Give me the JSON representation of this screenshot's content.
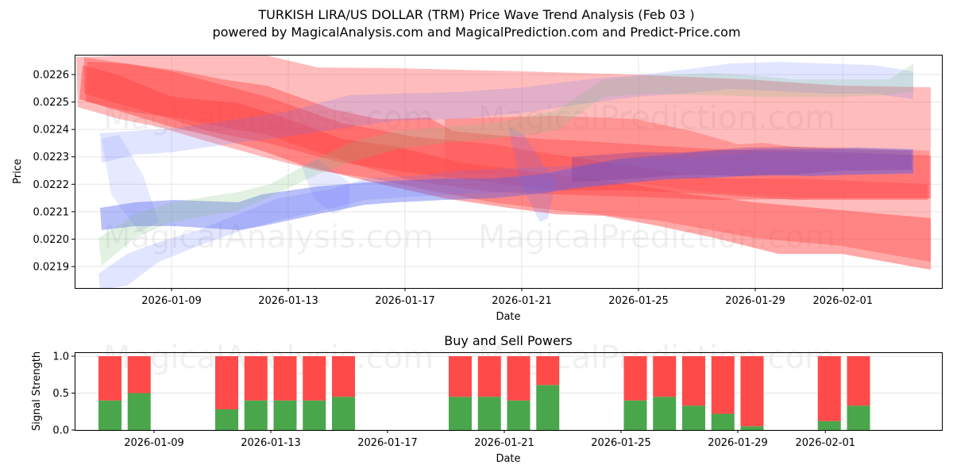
{
  "header": {
    "title": "TURKISH LIRA/US DOLLAR (TRM) Price Wave Trend Analysis (Feb 03 )",
    "subtitle": "powered by MagicalAnalysis.com and MagicalPrediction.com and Predict-Price.com"
  },
  "watermarks": [
    "MagicalAnalysis.com",
    "MagicalPrediction.com"
  ],
  "colors": {
    "buy": "#4aa64a",
    "sell": "#ff4a4a",
    "red_band": "#ff4040",
    "blue_band": "#6070ff",
    "green_band": "#80c080",
    "grid": "#e0e0e0"
  },
  "chart_data": [
    {
      "type": "area",
      "title": "TURKISH LIRA/US DOLLAR (TRM) Price Wave Trend Analysis (Feb 03 )",
      "xlabel": "Date",
      "ylabel": "Price",
      "x_ticks": [
        "2026-01-09",
        "2026-01-13",
        "2026-01-17",
        "2026-01-21",
        "2026-01-25",
        "2026-01-29",
        "2026-02-01"
      ],
      "y_ticks": [
        "0.0219",
        "0.0220",
        "0.0221",
        "0.0222",
        "0.0223",
        "0.0224",
        "0.0225",
        "0.0226"
      ],
      "ylim": [
        0.02182,
        0.02267
      ],
      "xlim": [
        "2026-01-05",
        "2026-02-04"
      ],
      "grid": true,
      "description": "Overlapping translucent wave-trend bands: red bands descending from ~0.0226 to ~0.0219-0.0225; blue and green bands ascending from ~0.0219-0.0223 to ~0.0222-0.0226",
      "series": [
        {
          "name": "red band 1",
          "color": "red",
          "x": [
            "2026-01-06",
            "2026-01-09",
            "2026-01-13",
            "2026-01-16",
            "2026-01-21",
            "2026-01-25",
            "2026-01-29",
            "2026-02-03"
          ],
          "upper": [
            0.02266,
            0.02262,
            0.02258,
            0.02256,
            0.02256,
            0.02255,
            0.02252,
            0.0225
          ],
          "lower": [
            0.0225,
            0.02246,
            0.02241,
            0.02239,
            0.02241,
            0.02238,
            0.02236,
            0.02232
          ]
        },
        {
          "name": "red band 2",
          "color": "red",
          "x": [
            "2026-01-06",
            "2026-01-09",
            "2026-01-13",
            "2026-01-16",
            "2026-01-21",
            "2026-01-25",
            "2026-01-28",
            "2026-01-30",
            "2026-02-03"
          ],
          "upper": [
            0.02266,
            0.02258,
            0.02252,
            0.02242,
            0.02238,
            0.02232,
            0.0223,
            0.02224,
            0.02222
          ],
          "lower": [
            0.02248,
            0.02238,
            0.02232,
            0.02222,
            0.02218,
            0.02215,
            0.02212,
            0.02205,
            0.02199
          ]
        },
        {
          "name": "red band 3",
          "color": "red",
          "x": [
            "2026-01-06",
            "2026-01-09",
            "2026-01-13",
            "2026-01-16",
            "2026-01-21",
            "2026-01-25",
            "2026-01-29",
            "2026-02-03"
          ],
          "upper": [
            0.0226,
            0.0225,
            0.02243,
            0.02236,
            0.02232,
            0.02225,
            0.02218,
            0.02207
          ],
          "lower": [
            0.02248,
            0.02238,
            0.02228,
            0.0222,
            0.02214,
            0.02204,
            0.02194,
            0.02188
          ]
        },
        {
          "name": "red band 4",
          "color": "red",
          "x": [
            "2026-01-16",
            "2026-01-21",
            "2026-01-25",
            "2026-01-28",
            "2026-01-30",
            "2026-02-03"
          ],
          "upper": [
            0.02245,
            0.02246,
            0.02247,
            0.02242,
            0.02232,
            0.02232
          ],
          "lower": [
            0.02228,
            0.02222,
            0.02218,
            0.02214,
            0.02215,
            0.02214
          ]
        },
        {
          "name": "blue band 1",
          "color": "blue",
          "x": [
            "2026-01-06",
            "2026-01-09",
            "2026-01-13",
            "2026-01-16",
            "2026-01-21",
            "2026-01-25",
            "2026-01-29",
            "2026-02-03"
          ],
          "upper": [
            0.02212,
            0.02214,
            0.02214,
            0.02219,
            0.02222,
            0.02227,
            0.02232,
            0.02231
          ],
          "lower": [
            0.02205,
            0.02207,
            0.02207,
            0.02213,
            0.02216,
            0.02221,
            0.02224,
            0.02223
          ]
        },
        {
          "name": "blue band 2",
          "color": "blue",
          "x": [
            "2026-01-06",
            "2026-01-09",
            "2026-01-13",
            "2026-01-16",
            "2026-01-20",
            "2026-01-25",
            "2026-01-29",
            "2026-02-03"
          ],
          "upper": [
            0.0224,
            0.02242,
            0.02242,
            0.02247,
            0.0225,
            0.02257,
            0.02262,
            0.02262
          ],
          "lower": [
            0.0223,
            0.0223,
            0.02232,
            0.02238,
            0.02242,
            0.02248,
            0.02252,
            0.02255
          ]
        },
        {
          "name": "blue band 3",
          "color": "blue",
          "x": [
            "2026-01-06",
            "2026-01-09",
            "2026-01-13",
            "2026-01-17",
            "2026-01-21",
            "2026-01-25",
            "2026-01-29",
            "2026-02-03"
          ],
          "upper": [
            0.02192,
            0.02203,
            0.02207,
            0.02215,
            0.02217,
            0.02226,
            0.02233,
            0.02233
          ],
          "lower": [
            0.02183,
            0.02195,
            0.022,
            0.02211,
            0.02213,
            0.02219,
            0.02224,
            0.02225
          ]
        },
        {
          "name": "green band",
          "color": "green",
          "x": [
            "2026-01-06",
            "2026-01-09",
            "2026-01-13",
            "2026-01-16",
            "2026-01-21",
            "2026-01-25",
            "2026-01-29",
            "2026-02-03"
          ],
          "upper": [
            0.022,
            0.02212,
            0.02221,
            0.0224,
            0.02249,
            0.02258,
            0.02258,
            0.02264
          ],
          "lower": [
            0.02194,
            0.02205,
            0.02213,
            0.02233,
            0.02243,
            0.02251,
            0.02252,
            0.02255
          ]
        }
      ]
    },
    {
      "type": "bar",
      "title": "Buy and Sell Powers",
      "xlabel": "Date",
      "ylabel": "Signal Strength",
      "ylim": [
        0,
        1.05
      ],
      "y_ticks": [
        "0.0",
        "0.5",
        "1.0"
      ],
      "x_ticks": [
        "2026-01-09",
        "2026-01-13",
        "2026-01-17",
        "2026-01-21",
        "2026-01-25",
        "2026-01-29",
        "2026-02-01"
      ],
      "grid": true,
      "categories": [
        "2026-01-07",
        "2026-01-08",
        "2026-01-11",
        "2026-01-12",
        "2026-01-13",
        "2026-01-14",
        "2026-01-15",
        "2026-01-19",
        "2026-01-20",
        "2026-01-21",
        "2026-01-22",
        "2026-01-25",
        "2026-01-26",
        "2026-01-27",
        "2026-01-28",
        "2026-01-29",
        "2026-02-01",
        "2026-02-02"
      ],
      "series": [
        {
          "name": "Buy",
          "color": "#4aa64a",
          "values": [
            0.4,
            0.5,
            0.28,
            0.4,
            0.4,
            0.4,
            0.45,
            0.45,
            0.45,
            0.4,
            0.61,
            0.4,
            0.45,
            0.33,
            0.22,
            0.05,
            0.12,
            0.33
          ]
        },
        {
          "name": "Sell",
          "color": "#ff4a4a",
          "values": [
            0.6,
            0.5,
            0.72,
            0.6,
            0.6,
            0.6,
            0.55,
            0.55,
            0.55,
            0.6,
            0.39,
            0.6,
            0.55,
            0.67,
            0.78,
            0.95,
            0.88,
            0.67
          ]
        }
      ]
    }
  ]
}
